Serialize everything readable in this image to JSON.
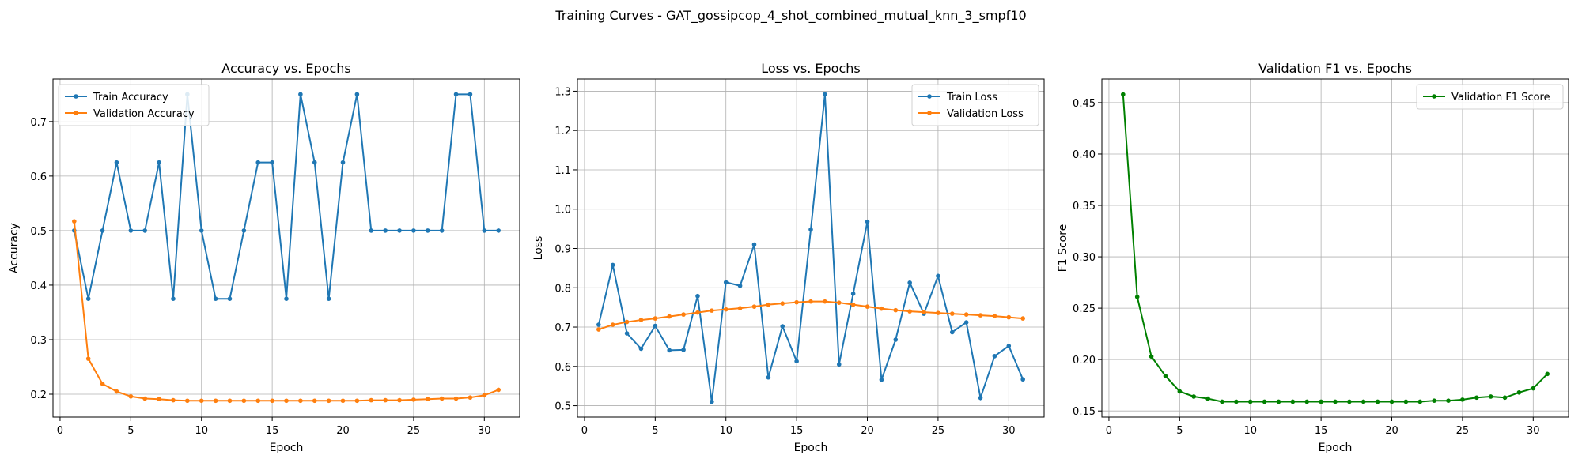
{
  "figure": {
    "suptitle": "Training Curves - GAT_gossipcop_4_shot_combined_mutual_knn_3_smpf10"
  },
  "chart_data": [
    {
      "type": "line",
      "title": "Accuracy vs. Epochs",
      "xlabel": "Epoch",
      "ylabel": "Accuracy",
      "xlim": [
        -0.5,
        32.5
      ],
      "ylim": [
        0.158,
        0.778
      ],
      "xticks": [
        0,
        5,
        10,
        15,
        20,
        25,
        30
      ],
      "yticks": [
        0.2,
        0.3,
        0.4,
        0.5,
        0.6,
        0.7
      ],
      "xtick_labels": [
        "0",
        "5",
        "10",
        "15",
        "20",
        "25",
        "30"
      ],
      "ytick_labels": [
        "0.2",
        "0.3",
        "0.4",
        "0.5",
        "0.6",
        "0.7"
      ],
      "grid": true,
      "legend": "top-left",
      "x": [
        1,
        2,
        3,
        4,
        5,
        6,
        7,
        8,
        9,
        10,
        11,
        12,
        13,
        14,
        15,
        16,
        17,
        18,
        19,
        20,
        21,
        22,
        23,
        24,
        25,
        26,
        27,
        28,
        29,
        30,
        31
      ],
      "series": [
        {
          "name": "Train Accuracy",
          "color": "#1f77b4",
          "values": [
            0.5,
            0.375,
            0.5,
            0.625,
            0.5,
            0.5,
            0.625,
            0.375,
            0.75,
            0.5,
            0.375,
            0.375,
            0.5,
            0.625,
            0.625,
            0.375,
            0.75,
            0.625,
            0.375,
            0.625,
            0.75,
            0.5,
            0.5,
            0.5,
            0.5,
            0.5,
            0.5,
            0.75,
            0.75,
            0.5,
            0.5
          ]
        },
        {
          "name": "Validation Accuracy",
          "color": "#ff7f0e",
          "values": [
            0.517,
            0.265,
            0.219,
            0.205,
            0.196,
            0.192,
            0.191,
            0.189,
            0.188,
            0.188,
            0.188,
            0.188,
            0.188,
            0.188,
            0.188,
            0.188,
            0.188,
            0.188,
            0.188,
            0.188,
            0.188,
            0.189,
            0.189,
            0.189,
            0.19,
            0.191,
            0.192,
            0.192,
            0.194,
            0.198,
            0.208
          ]
        }
      ]
    },
    {
      "type": "line",
      "title": "Loss vs. Epochs",
      "xlabel": "Epoch",
      "ylabel": "Loss",
      "xlim": [
        -0.5,
        32.5
      ],
      "ylim": [
        0.471,
        1.331
      ],
      "xticks": [
        0,
        5,
        10,
        15,
        20,
        25,
        30
      ],
      "yticks": [
        0.5,
        0.6,
        0.7,
        0.8,
        0.9,
        1.0,
        1.1,
        1.2,
        1.3
      ],
      "xtick_labels": [
        "0",
        "5",
        "10",
        "15",
        "20",
        "25",
        "30"
      ],
      "ytick_labels": [
        "0.5",
        "0.6",
        "0.7",
        "0.8",
        "0.9",
        "1.0",
        "1.1",
        "1.2",
        "1.3"
      ],
      "grid": true,
      "legend": "top-right",
      "x": [
        1,
        2,
        3,
        4,
        5,
        6,
        7,
        8,
        9,
        10,
        11,
        12,
        13,
        14,
        15,
        16,
        17,
        18,
        19,
        20,
        21,
        22,
        23,
        24,
        25,
        26,
        27,
        28,
        29,
        30,
        31
      ],
      "series": [
        {
          "name": "Train Loss",
          "color": "#1f77b4",
          "values": [
            0.706,
            0.858,
            0.684,
            0.645,
            0.703,
            0.641,
            0.642,
            0.779,
            0.51,
            0.814,
            0.805,
            0.91,
            0.572,
            0.702,
            0.613,
            0.948,
            1.292,
            0.605,
            0.785,
            0.968,
            0.566,
            0.668,
            0.813,
            0.734,
            0.83,
            0.687,
            0.712,
            0.52,
            0.626,
            0.652,
            0.567
          ]
        },
        {
          "name": "Validation Loss",
          "color": "#ff7f0e",
          "values": [
            0.694,
            0.706,
            0.713,
            0.718,
            0.722,
            0.727,
            0.732,
            0.737,
            0.742,
            0.745,
            0.748,
            0.752,
            0.757,
            0.76,
            0.763,
            0.765,
            0.765,
            0.762,
            0.757,
            0.752,
            0.747,
            0.743,
            0.74,
            0.738,
            0.736,
            0.734,
            0.732,
            0.73,
            0.728,
            0.725,
            0.722
          ]
        }
      ]
    },
    {
      "type": "line",
      "title": "Validation F1 vs. Epochs",
      "xlabel": "Epoch",
      "ylabel": "F1 Score",
      "xlim": [
        -0.5,
        32.5
      ],
      "ylim": [
        0.144,
        0.473
      ],
      "xticks": [
        0,
        5,
        10,
        15,
        20,
        25,
        30
      ],
      "yticks": [
        0.15,
        0.2,
        0.25,
        0.3,
        0.35,
        0.4,
        0.45
      ],
      "xtick_labels": [
        "0",
        "5",
        "10",
        "15",
        "20",
        "25",
        "30"
      ],
      "ytick_labels": [
        "0.15",
        "0.20",
        "0.25",
        "0.30",
        "0.35",
        "0.40",
        "0.45"
      ],
      "grid": true,
      "legend": "top-right",
      "x": [
        1,
        2,
        3,
        4,
        5,
        6,
        7,
        8,
        9,
        10,
        11,
        12,
        13,
        14,
        15,
        16,
        17,
        18,
        19,
        20,
        21,
        22,
        23,
        24,
        25,
        26,
        27,
        28,
        29,
        30,
        31
      ],
      "series": [
        {
          "name": "Validation F1 Score",
          "color": "#008000",
          "values": [
            0.458,
            0.261,
            0.203,
            0.184,
            0.169,
            0.164,
            0.162,
            0.159,
            0.159,
            0.159,
            0.159,
            0.159,
            0.159,
            0.159,
            0.159,
            0.159,
            0.159,
            0.159,
            0.159,
            0.159,
            0.159,
            0.159,
            0.16,
            0.16,
            0.161,
            0.163,
            0.164,
            0.163,
            0.168,
            0.172,
            0.186
          ]
        }
      ]
    }
  ]
}
